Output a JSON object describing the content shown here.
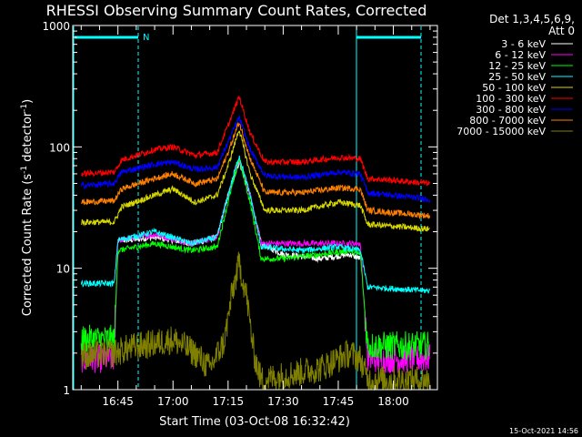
{
  "chart_data": {
    "type": "line",
    "title": "RHESSI Observing Summary Count Rates, Corrected",
    "xlabel": "Start Time (03-Oct-08 16:32:42)",
    "ylabel_main": "Corrected Count Rate (s",
    "ylabel_sup1": "-1",
    "ylabel_mid": " detector",
    "ylabel_sup2": "-1",
    "ylabel_end": ")",
    "y_scale": "log",
    "ylim": [
      1,
      1000
    ],
    "xlim": [
      "16:32:42",
      "18:12:00"
    ],
    "x_ticks": [
      "16:45",
      "17:00",
      "17:15",
      "17:30",
      "17:45",
      "18:00"
    ],
    "y_ticks": [
      {
        "value": 1,
        "label": "1"
      },
      {
        "value": 10,
        "label": "10"
      },
      {
        "value": 100,
        "label": "100"
      },
      {
        "value": 1000,
        "label": "1000"
      }
    ],
    "detectors": "Det 1,3,4,5,6,9,",
    "attenuator": "Att 0",
    "timestamp": "15-Oct-2021 14:56",
    "night_marker": "N",
    "legend_position": "right",
    "series": [
      {
        "name": "3 - 6 keV",
        "color": "#ffffff",
        "points": [
          [
            "16:45",
            17
          ],
          [
            "16:48",
            17
          ],
          [
            "16:55",
            18
          ],
          [
            "17:05",
            16
          ],
          [
            "17:12",
            18
          ],
          [
            "17:15",
            40
          ],
          [
            "17:18",
            75
          ],
          [
            "17:21",
            40
          ],
          [
            "17:24",
            16
          ],
          [
            "17:30",
            13
          ],
          [
            "17:40",
            12
          ],
          [
            "17:48",
            13
          ],
          [
            "17:51",
            12
          ]
        ]
      },
      {
        "name": "6 - 12 keV",
        "color": "#ff00ff",
        "points": [
          [
            "16:35",
            1.8
          ],
          [
            "16:44",
            1.8
          ],
          [
            "16:45",
            17
          ],
          [
            "16:55",
            19
          ],
          [
            "17:05",
            16
          ],
          [
            "17:12",
            18
          ],
          [
            "17:15",
            40
          ],
          [
            "17:18",
            80
          ],
          [
            "17:21",
            40
          ],
          [
            "17:24",
            16
          ],
          [
            "17:35",
            16
          ],
          [
            "17:45",
            16
          ],
          [
            "17:51",
            16
          ],
          [
            "17:53",
            1.8
          ],
          [
            "18:10",
            1.8
          ]
        ]
      },
      {
        "name": "12 - 25 keV",
        "color": "#00ff00",
        "points": [
          [
            "16:35",
            2.6
          ],
          [
            "16:44",
            2.6
          ],
          [
            "16:45",
            14
          ],
          [
            "16:55",
            16
          ],
          [
            "17:05",
            14
          ],
          [
            "17:12",
            15
          ],
          [
            "17:15",
            35
          ],
          [
            "17:18",
            80
          ],
          [
            "17:21",
            35
          ],
          [
            "17:24",
            12
          ],
          [
            "17:30",
            12
          ],
          [
            "17:40",
            13
          ],
          [
            "17:48",
            14
          ],
          [
            "17:51",
            13
          ],
          [
            "17:53",
            2.3
          ],
          [
            "18:10",
            2.3
          ]
        ]
      },
      {
        "name": "25 - 50 keV",
        "color": "#00ffff",
        "points": [
          [
            "16:35",
            7.5
          ],
          [
            "16:44",
            7.5
          ],
          [
            "16:45",
            17
          ],
          [
            "16:55",
            20
          ],
          [
            "17:05",
            16
          ],
          [
            "17:12",
            18
          ],
          [
            "17:15",
            40
          ],
          [
            "17:18",
            85
          ],
          [
            "17:21",
            40
          ],
          [
            "17:24",
            15
          ],
          [
            "17:35",
            14
          ],
          [
            "17:45",
            15
          ],
          [
            "17:51",
            14
          ],
          [
            "17:53",
            7
          ],
          [
            "18:10",
            6.5
          ]
        ]
      },
      {
        "name": "50 - 100 keV",
        "color": "#d8d800",
        "points": [
          [
            "16:35",
            24
          ],
          [
            "16:44",
            24
          ],
          [
            "16:46",
            32
          ],
          [
            "16:55",
            40
          ],
          [
            "17:00",
            45
          ],
          [
            "17:06",
            35
          ],
          [
            "17:12",
            40
          ],
          [
            "17:15",
            70
          ],
          [
            "17:18",
            140
          ],
          [
            "17:21",
            60
          ],
          [
            "17:25",
            30
          ],
          [
            "17:35",
            30
          ],
          [
            "17:45",
            35
          ],
          [
            "17:51",
            33
          ],
          [
            "17:53",
            23
          ],
          [
            "18:10",
            21
          ]
        ]
      },
      {
        "name": "100 - 300 keV",
        "color": "#ff0000",
        "points": [
          [
            "16:35",
            60
          ],
          [
            "16:44",
            62
          ],
          [
            "16:46",
            78
          ],
          [
            "16:55",
            95
          ],
          [
            "17:00",
            100
          ],
          [
            "17:06",
            85
          ],
          [
            "17:12",
            90
          ],
          [
            "17:15",
            150
          ],
          [
            "17:18",
            260
          ],
          [
            "17:21",
            130
          ],
          [
            "17:25",
            75
          ],
          [
            "17:35",
            75
          ],
          [
            "17:45",
            82
          ],
          [
            "17:51",
            80
          ],
          [
            "17:53",
            55
          ],
          [
            "18:10",
            50
          ]
        ]
      },
      {
        "name": "300 - 800 keV",
        "color": "#0000ff",
        "points": [
          [
            "16:35",
            48
          ],
          [
            "16:44",
            50
          ],
          [
            "16:46",
            62
          ],
          [
            "16:55",
            72
          ],
          [
            "17:00",
            75
          ],
          [
            "17:06",
            65
          ],
          [
            "17:12",
            68
          ],
          [
            "17:15",
            110
          ],
          [
            "17:18",
            175
          ],
          [
            "17:21",
            95
          ],
          [
            "17:25",
            58
          ],
          [
            "17:35",
            56
          ],
          [
            "17:45",
            62
          ],
          [
            "17:51",
            60
          ],
          [
            "17:53",
            42
          ],
          [
            "18:10",
            37
          ]
        ]
      },
      {
        "name": "800 - 7000 keV",
        "color": "#ff8000",
        "points": [
          [
            "16:35",
            35
          ],
          [
            "16:44",
            36
          ],
          [
            "16:46",
            45
          ],
          [
            "16:55",
            55
          ],
          [
            "17:00",
            60
          ],
          [
            "17:06",
            50
          ],
          [
            "17:12",
            54
          ],
          [
            "17:15",
            90
          ],
          [
            "17:18",
            160
          ],
          [
            "17:21",
            80
          ],
          [
            "17:25",
            42
          ],
          [
            "17:35",
            42
          ],
          [
            "17:45",
            46
          ],
          [
            "17:51",
            45
          ],
          [
            "17:53",
            30
          ],
          [
            "18:10",
            27
          ]
        ]
      },
      {
        "name": "7000 - 15000 keV",
        "color": "#808000",
        "points": [
          [
            "16:35",
            1.9
          ],
          [
            "16:44",
            2
          ],
          [
            "16:48",
            2.2
          ],
          [
            "16:55",
            2.4
          ],
          [
            "17:00",
            2.6
          ],
          [
            "17:06",
            2
          ],
          [
            "17:10",
            1.5
          ],
          [
            "17:14",
            2.5
          ],
          [
            "17:16",
            6
          ],
          [
            "17:18",
            11
          ],
          [
            "17:20",
            6
          ],
          [
            "17:22",
            2
          ],
          [
            "17:24",
            1.2
          ],
          [
            "17:40",
            1.5
          ],
          [
            "17:48",
            2
          ],
          [
            "17:51",
            1.8
          ],
          [
            "17:53",
            1.2
          ],
          [
            "18:10",
            1.2
          ]
        ]
      }
    ]
  }
}
